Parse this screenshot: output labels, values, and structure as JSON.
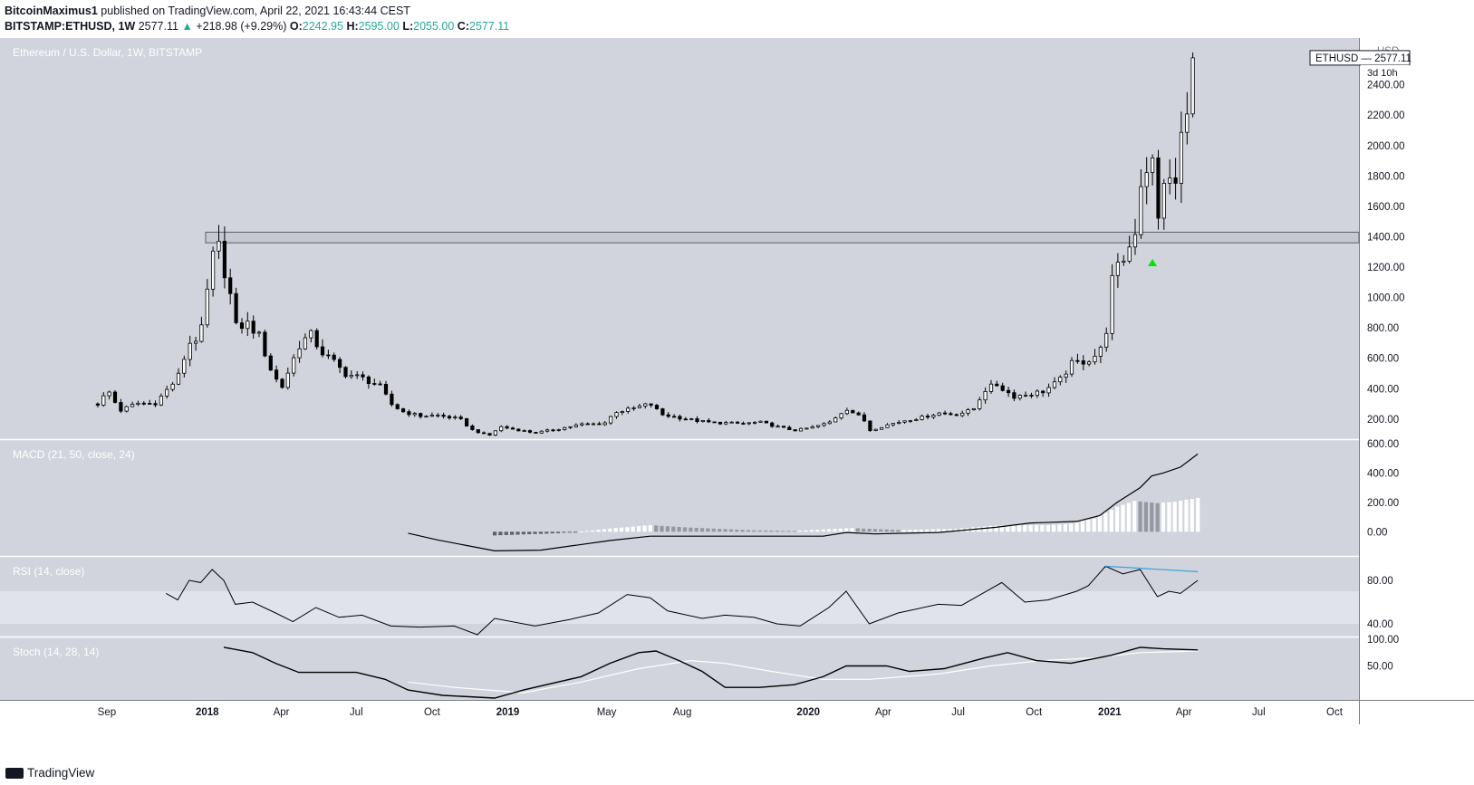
{
  "header": {
    "author": "BitcoinMaximus1",
    "published": " published on TradingView.com, April 22, 2021 16:43:44 CEST",
    "symbol": "BITSTAMP:ETHUSD, 1W",
    "price": "2577.11",
    "arrow": "▲",
    "change": "+218.98 (+9.29%)",
    "o_label": "O:",
    "o": "2242.95",
    "h_label": "H:",
    "h": "2595.00",
    "l_label": "L:",
    "l": "2055.00",
    "c_label": "C:",
    "c": "2577.11"
  },
  "footer": {
    "logo_text": "TradingView"
  },
  "chart_data": [
    {
      "type": "candlestick",
      "title": "Ethereum / U.S. Dollar, 1W, BITSTAMP",
      "unit": "USD",
      "last_price_label": "ETHUSD",
      "last_price": 2577.11,
      "countdown": "3d 10h",
      "ylim": [
        80,
        2660
      ],
      "y_ticks": [
        200,
        400,
        600,
        800,
        1000,
        1200,
        1400,
        1600,
        1800,
        2000,
        2200,
        2400
      ],
      "resistance_zone": [
        1360,
        1430
      ],
      "marker": {
        "date": "2021-02-22",
        "price": 1230,
        "color": "#00e600"
      },
      "x_ticks": [
        "Sep",
        "2018",
        "Apr",
        "Jul",
        "Oct",
        "2019",
        "May",
        "Aug",
        "2020",
        "Apr",
        "Jul",
        "Oct",
        "2021",
        "Apr",
        "Jul",
        "Oct"
      ],
      "close_path": [
        [
          "2017-08-21",
          300
        ],
        [
          "2017-09-03",
          385
        ],
        [
          "2017-09-17",
          255
        ],
        [
          "2017-10-08",
          305
        ],
        [
          "2017-10-29",
          300
        ],
        [
          "2017-11-26",
          470
        ],
        [
          "2017-12-10",
          700
        ],
        [
          "2017-12-24",
          750
        ],
        [
          "2018-01-07",
          1250
        ],
        [
          "2018-01-14",
          1350
        ],
        [
          "2018-01-28",
          1050
        ],
        [
          "2018-02-04",
          800
        ],
        [
          "2018-02-18",
          830
        ],
        [
          "2018-03-04",
          760
        ],
        [
          "2018-03-18",
          540
        ],
        [
          "2018-04-01",
          400
        ],
        [
          "2018-04-22",
          680
        ],
        [
          "2018-05-06",
          760
        ],
        [
          "2018-05-20",
          640
        ],
        [
          "2018-06-03",
          580
        ],
        [
          "2018-06-17",
          500
        ],
        [
          "2018-07-08",
          470
        ],
        [
          "2018-07-29",
          420
        ],
        [
          "2018-08-12",
          300
        ],
        [
          "2018-08-26",
          250
        ],
        [
          "2018-09-16",
          220
        ],
        [
          "2018-10-07",
          225
        ],
        [
          "2018-11-04",
          200
        ],
        [
          "2018-11-18",
          130
        ],
        [
          "2018-12-09",
          90
        ],
        [
          "2018-12-23",
          150
        ],
        [
          "2019-01-06",
          135
        ],
        [
          "2019-02-03",
          110
        ],
        [
          "2019-03-03",
          135
        ],
        [
          "2019-03-31",
          165
        ],
        [
          "2019-04-28",
          170
        ],
        [
          "2019-05-12",
          250
        ],
        [
          "2019-05-26",
          260
        ],
        [
          "2019-06-23",
          300
        ],
        [
          "2019-07-07",
          230
        ],
        [
          "2019-07-28",
          210
        ],
        [
          "2019-08-18",
          190
        ],
        [
          "2019-09-08",
          175
        ],
        [
          "2019-09-22",
          175
        ],
        [
          "2019-10-13",
          170
        ],
        [
          "2019-11-03",
          180
        ],
        [
          "2019-11-24",
          150
        ],
        [
          "2019-12-15",
          125
        ],
        [
          "2020-01-05",
          145
        ],
        [
          "2020-01-26",
          175
        ],
        [
          "2020-02-16",
          270
        ],
        [
          "2020-03-08",
          200
        ],
        [
          "2020-03-15",
          125
        ],
        [
          "2020-04-05",
          160
        ],
        [
          "2020-04-26",
          190
        ],
        [
          "2020-05-17",
          210
        ],
        [
          "2020-06-07",
          240
        ],
        [
          "2020-06-28",
          230
        ],
        [
          "2020-07-19",
          260
        ],
        [
          "2020-08-02",
          390
        ],
        [
          "2020-08-16",
          430
        ],
        [
          "2020-09-06",
          350
        ],
        [
          "2020-09-20",
          360
        ],
        [
          "2020-10-11",
          380
        ],
        [
          "2020-11-01",
          450
        ],
        [
          "2020-11-15",
          560
        ],
        [
          "2020-12-06",
          590
        ],
        [
          "2020-12-20",
          640
        ],
        [
          "2020-12-27",
          740
        ],
        [
          "2021-01-03",
          1100
        ],
        [
          "2021-01-17",
          1250
        ],
        [
          "2021-01-31",
          1400
        ],
        [
          "2021-02-07",
          1750
        ],
        [
          "2021-02-21",
          1950
        ],
        [
          "2021-02-28",
          1450
        ],
        [
          "2021-03-07",
          1800
        ],
        [
          "2021-03-21",
          1700
        ],
        [
          "2021-03-28",
          2050
        ],
        [
          "2021-04-04",
          2150
        ],
        [
          "2021-04-11",
          2250
        ],
        [
          "2021-04-18",
          2577
        ]
      ]
    },
    {
      "type": "line+histogram",
      "title": "MACD (21, 50, close, 24)",
      "y_ticks": [
        0,
        200,
        400,
        600
      ],
      "ylim": [
        -140,
        600
      ],
      "macd_line": [
        [
          "2018-09-02",
          -10
        ],
        [
          "2018-10-07",
          -55
        ],
        [
          "2018-11-18",
          -100
        ],
        [
          "2018-12-16",
          -130
        ],
        [
          "2019-02-10",
          -125
        ],
        [
          "2019-05-05",
          -60
        ],
        [
          "2019-06-23",
          -30
        ],
        [
          "2019-10-13",
          -30
        ],
        [
          "2020-01-19",
          -30
        ],
        [
          "2020-02-16",
          -5
        ],
        [
          "2020-03-22",
          -15
        ],
        [
          "2020-06-07",
          -5
        ],
        [
          "2020-08-16",
          30
        ],
        [
          "2020-09-27",
          60
        ],
        [
          "2020-11-22",
          70
        ],
        [
          "2020-12-20",
          110
        ],
        [
          "2021-01-10",
          200
        ],
        [
          "2021-02-07",
          300
        ],
        [
          "2021-02-21",
          380
        ],
        [
          "2021-03-07",
          400
        ],
        [
          "2021-03-28",
          440
        ],
        [
          "2021-04-18",
          530
        ]
      ],
      "histogram": [
        [
          "2018-12-16",
          -25
        ],
        [
          "2019-03-03",
          -10
        ],
        [
          "2019-04-07",
          5
        ],
        [
          "2019-05-12",
          25
        ],
        [
          "2019-06-23",
          45
        ],
        [
          "2019-08-04",
          30
        ],
        [
          "2019-09-15",
          20
        ],
        [
          "2019-10-27",
          10
        ],
        [
          "2019-12-15",
          5
        ],
        [
          "2020-02-02",
          20
        ],
        [
          "2020-02-23",
          25
        ],
        [
          "2020-04-19",
          12
        ],
        [
          "2020-06-28",
          20
        ],
        [
          "2020-08-09",
          40
        ],
        [
          "2020-09-06",
          45
        ],
        [
          "2020-10-18",
          45
        ],
        [
          "2020-11-15",
          55
        ],
        [
          "2020-12-13",
          90
        ],
        [
          "2021-01-10",
          170
        ],
        [
          "2021-01-31",
          210
        ],
        [
          "2021-02-28",
          195
        ],
        [
          "2021-03-21",
          205
        ],
        [
          "2021-04-18",
          230
        ]
      ]
    },
    {
      "type": "line",
      "title": "RSI (14, close)",
      "y_ticks": [
        40,
        80
      ],
      "ylim": [
        30,
        100
      ],
      "band": [
        40,
        70
      ],
      "divergence_line": {
        "from": [
          "2020-12-27",
          93
        ],
        "to": [
          "2021-04-18",
          88
        ],
        "color": "#36a3d9"
      },
      "values": [
        [
          "2017-11-12",
          68
        ],
        [
          "2017-11-26",
          62
        ],
        [
          "2017-12-10",
          80
        ],
        [
          "2017-12-24",
          78
        ],
        [
          "2018-01-07",
          90
        ],
        [
          "2018-01-21",
          80
        ],
        [
          "2018-02-04",
          58
        ],
        [
          "2018-02-25",
          60
        ],
        [
          "2018-03-25",
          50
        ],
        [
          "2018-04-15",
          42
        ],
        [
          "2018-05-13",
          55
        ],
        [
          "2018-06-10",
          46
        ],
        [
          "2018-07-08",
          48
        ],
        [
          "2018-08-12",
          38
        ],
        [
          "2018-09-16",
          37
        ],
        [
          "2018-10-28",
          38
        ],
        [
          "2018-11-25",
          30
        ],
        [
          "2018-12-16",
          45
        ],
        [
          "2019-02-03",
          38
        ],
        [
          "2019-03-17",
          44
        ],
        [
          "2019-04-21",
          50
        ],
        [
          "2019-05-26",
          67
        ],
        [
          "2019-06-23",
          64
        ],
        [
          "2019-07-14",
          52
        ],
        [
          "2019-08-25",
          45
        ],
        [
          "2019-09-22",
          48
        ],
        [
          "2019-10-27",
          46
        ],
        [
          "2019-11-24",
          40
        ],
        [
          "2019-12-22",
          38
        ],
        [
          "2020-01-26",
          55
        ],
        [
          "2020-02-16",
          70
        ],
        [
          "2020-03-15",
          40
        ],
        [
          "2020-04-19",
          50
        ],
        [
          "2020-06-07",
          58
        ],
        [
          "2020-07-05",
          57
        ],
        [
          "2020-08-09",
          72
        ],
        [
          "2020-08-23",
          78
        ],
        [
          "2020-09-20",
          60
        ],
        [
          "2020-10-18",
          62
        ],
        [
          "2020-11-22",
          70
        ],
        [
          "2020-12-06",
          75
        ],
        [
          "2020-12-27",
          93
        ],
        [
          "2021-01-17",
          86
        ],
        [
          "2021-02-07",
          90
        ],
        [
          "2021-02-28",
          65
        ],
        [
          "2021-03-14",
          70
        ],
        [
          "2021-03-28",
          68
        ],
        [
          "2021-04-18",
          80
        ]
      ]
    },
    {
      "type": "line",
      "title": "Stoch (14, 28, 14)",
      "y_ticks": [
        50,
        100
      ],
      "ylim": [
        -10,
        100
      ],
      "k_line": [
        [
          "2018-01-21",
          85
        ],
        [
          "2018-02-25",
          75
        ],
        [
          "2018-03-25",
          55
        ],
        [
          "2018-04-22",
          38
        ],
        [
          "2018-05-27",
          38
        ],
        [
          "2018-07-01",
          38
        ],
        [
          "2018-08-05",
          25
        ],
        [
          "2018-09-02",
          5
        ],
        [
          "2018-10-14",
          -5
        ],
        [
          "2018-12-16",
          -10
        ],
        [
          "2019-01-20",
          5
        ],
        [
          "2019-03-31",
          30
        ],
        [
          "2019-05-05",
          55
        ],
        [
          "2019-06-09",
          75
        ],
        [
          "2019-06-30",
          78
        ],
        [
          "2019-07-28",
          60
        ],
        [
          "2019-08-25",
          40
        ],
        [
          "2019-09-22",
          10
        ],
        [
          "2019-11-03",
          10
        ],
        [
          "2019-12-15",
          15
        ],
        [
          "2020-01-19",
          30
        ],
        [
          "2020-02-16",
          50
        ],
        [
          "2020-04-05",
          50
        ],
        [
          "2020-05-03",
          40
        ],
        [
          "2020-06-14",
          45
        ],
        [
          "2020-08-02",
          65
        ],
        [
          "2020-08-30",
          75
        ],
        [
          "2020-10-04",
          60
        ],
        [
          "2020-11-15",
          55
        ],
        [
          "2021-01-03",
          70
        ],
        [
          "2021-02-07",
          85
        ],
        [
          "2021-03-07",
          82
        ],
        [
          "2021-04-18",
          80
        ]
      ],
      "d_line": [
        [
          "2018-09-02",
          20
        ],
        [
          "2018-10-28",
          10
        ],
        [
          "2019-01-20",
          0
        ],
        [
          "2019-03-31",
          20
        ],
        [
          "2019-06-09",
          45
        ],
        [
          "2019-08-11",
          60
        ],
        [
          "2019-09-22",
          55
        ],
        [
          "2019-11-17",
          40
        ],
        [
          "2020-01-19",
          25
        ],
        [
          "2020-03-15",
          25
        ],
        [
          "2020-06-07",
          35
        ],
        [
          "2020-08-09",
          50
        ],
        [
          "2020-10-11",
          60
        ],
        [
          "2020-12-13",
          65
        ],
        [
          "2021-02-07",
          75
        ],
        [
          "2021-04-18",
          78
        ]
      ]
    }
  ]
}
